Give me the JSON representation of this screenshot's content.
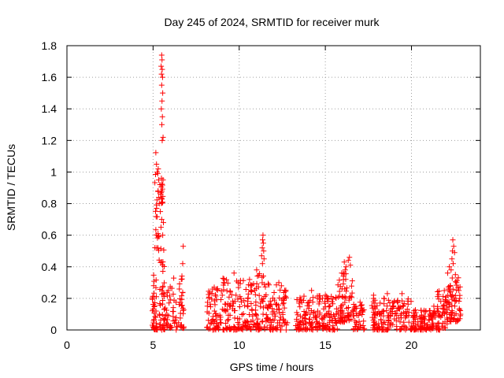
{
  "chart_data": {
    "type": "scatter",
    "title": "Day 245 of 2024, SRMTID for receiver murk",
    "xlabel": "GPS time / hours",
    "ylabel": "SRMTID / TECUs",
    "xlim": [
      0,
      24
    ],
    "ylim": [
      0,
      1.8
    ],
    "xticks": [
      0,
      5,
      10,
      15,
      20
    ],
    "yticks": [
      0,
      0.2,
      0.4,
      0.6,
      0.8,
      1,
      1.2,
      1.4,
      1.6,
      1.8
    ],
    "xtick_labels": [
      "0",
      "5",
      "10",
      "15",
      "20"
    ],
    "ytick_labels": [
      "0",
      "0.2",
      "0.4",
      "0.6",
      "0.8",
      "1",
      "1.2",
      "1.4",
      "1.6",
      "1.8"
    ],
    "grid": true,
    "marker": "+",
    "marker_color": "#ff0000",
    "series": [
      {
        "name": "SRMTID",
        "segments": [
          {
            "x0": 4.95,
            "x1": 5.25,
            "ylo": 0.0,
            "yhi": 0.35,
            "n": 40,
            "seed": 11
          },
          {
            "x0": 5.1,
            "x1": 5.35,
            "ylo": 0.5,
            "yhi": 1.17,
            "n": 22,
            "seed": 12
          },
          {
            "x0": 5.35,
            "x1": 5.65,
            "ylo": 0.0,
            "yhi": 0.55,
            "n": 40,
            "seed": 13
          },
          {
            "x0": 5.45,
            "x1": 5.6,
            "ylo": 0.8,
            "yhi": 1.22,
            "n": 14,
            "seed": 14
          },
          {
            "x0": 5.65,
            "x1": 6.8,
            "ylo": 0.0,
            "yhi": 0.35,
            "n": 70,
            "seed": 15
          },
          {
            "x0": 8.1,
            "x1": 9.0,
            "ylo": 0.0,
            "yhi": 0.27,
            "n": 60,
            "seed": 16
          },
          {
            "x0": 9.0,
            "x1": 11.0,
            "ylo": 0.0,
            "yhi": 0.33,
            "n": 140,
            "seed": 17
          },
          {
            "x0": 11.0,
            "x1": 11.5,
            "ylo": 0.0,
            "yhi": 0.4,
            "n": 40,
            "seed": 18
          },
          {
            "x0": 11.5,
            "x1": 12.8,
            "ylo": 0.0,
            "yhi": 0.3,
            "n": 90,
            "seed": 19
          },
          {
            "x0": 13.2,
            "x1": 15.7,
            "ylo": 0.0,
            "yhi": 0.22,
            "n": 170,
            "seed": 20
          },
          {
            "x0": 15.7,
            "x1": 16.6,
            "ylo": 0.05,
            "yhi": 0.38,
            "n": 70,
            "seed": 21
          },
          {
            "x0": 16.6,
            "x1": 17.3,
            "ylo": 0.0,
            "yhi": 0.18,
            "n": 45,
            "seed": 22
          },
          {
            "x0": 17.7,
            "x1": 20.0,
            "ylo": 0.0,
            "yhi": 0.2,
            "n": 150,
            "seed": 23
          },
          {
            "x0": 20.0,
            "x1": 21.5,
            "ylo": 0.0,
            "yhi": 0.13,
            "n": 110,
            "seed": 24
          },
          {
            "x0": 21.5,
            "x1": 22.1,
            "ylo": 0.0,
            "yhi": 0.25,
            "n": 50,
            "seed": 25
          },
          {
            "x0": 22.1,
            "x1": 22.85,
            "ylo": 0.05,
            "yhi": 0.4,
            "n": 60,
            "seed": 26
          }
        ],
        "points": [
          [
            5.5,
            1.74
          ],
          [
            5.52,
            1.71
          ],
          [
            5.47,
            1.67
          ],
          [
            5.53,
            1.65
          ],
          [
            5.49,
            1.62
          ],
          [
            5.55,
            1.6
          ],
          [
            5.5,
            1.55
          ],
          [
            5.56,
            1.5
          ],
          [
            5.52,
            1.45
          ],
          [
            5.48,
            1.4
          ],
          [
            5.54,
            1.35
          ],
          [
            5.51,
            1.3
          ],
          [
            5.58,
            1.22
          ],
          [
            5.53,
            1.2
          ],
          [
            5.3,
            1.02
          ],
          [
            5.27,
            0.99
          ],
          [
            5.24,
            1.0
          ],
          [
            5.33,
            0.95
          ],
          [
            5.4,
            0.92
          ],
          [
            5.29,
            0.88
          ],
          [
            5.44,
            0.86
          ],
          [
            5.36,
            0.8
          ],
          [
            5.42,
            0.75
          ],
          [
            5.5,
            0.7
          ],
          [
            5.6,
            0.68
          ],
          [
            5.46,
            0.65
          ],
          [
            5.56,
            0.6
          ],
          [
            6.75,
            0.53
          ],
          [
            6.72,
            0.42
          ],
          [
            11.38,
            0.6
          ],
          [
            11.36,
            0.57
          ],
          [
            11.4,
            0.55
          ],
          [
            11.34,
            0.52
          ],
          [
            11.42,
            0.5
          ],
          [
            11.3,
            0.47
          ],
          [
            11.44,
            0.45
          ],
          [
            11.35,
            0.42
          ],
          [
            16.4,
            0.46
          ],
          [
            16.33,
            0.44
          ],
          [
            16.1,
            0.43
          ],
          [
            16.45,
            0.41
          ],
          [
            16.2,
            0.4
          ],
          [
            15.95,
            0.36
          ],
          [
            16.05,
            0.34
          ],
          [
            16.15,
            0.38
          ],
          [
            22.4,
            0.57
          ],
          [
            22.45,
            0.53
          ],
          [
            22.38,
            0.5
          ],
          [
            22.5,
            0.49
          ],
          [
            22.35,
            0.45
          ],
          [
            22.42,
            0.42
          ],
          [
            22.2,
            0.4
          ],
          [
            22.3,
            0.38
          ],
          [
            22.1,
            0.36
          ],
          [
            22.55,
            0.35
          ],
          [
            22.62,
            0.3
          ],
          [
            22.7,
            0.27
          ],
          [
            22.75,
            0.25
          ],
          [
            22.8,
            0.2
          ],
          [
            22.85,
            0.1
          ],
          [
            12.3,
            0.3
          ],
          [
            12.45,
            0.28
          ],
          [
            10.6,
            0.32
          ],
          [
            9.7,
            0.36
          ],
          [
            9.1,
            0.3
          ],
          [
            8.55,
            0.27
          ],
          [
            14.2,
            0.25
          ],
          [
            15.0,
            0.22
          ],
          [
            18.4,
            0.2
          ],
          [
            19.45,
            0.23
          ],
          [
            17.8,
            0.22
          ],
          [
            18.6,
            0.23
          ],
          [
            21.3,
            0.15
          ]
        ]
      }
    ]
  }
}
